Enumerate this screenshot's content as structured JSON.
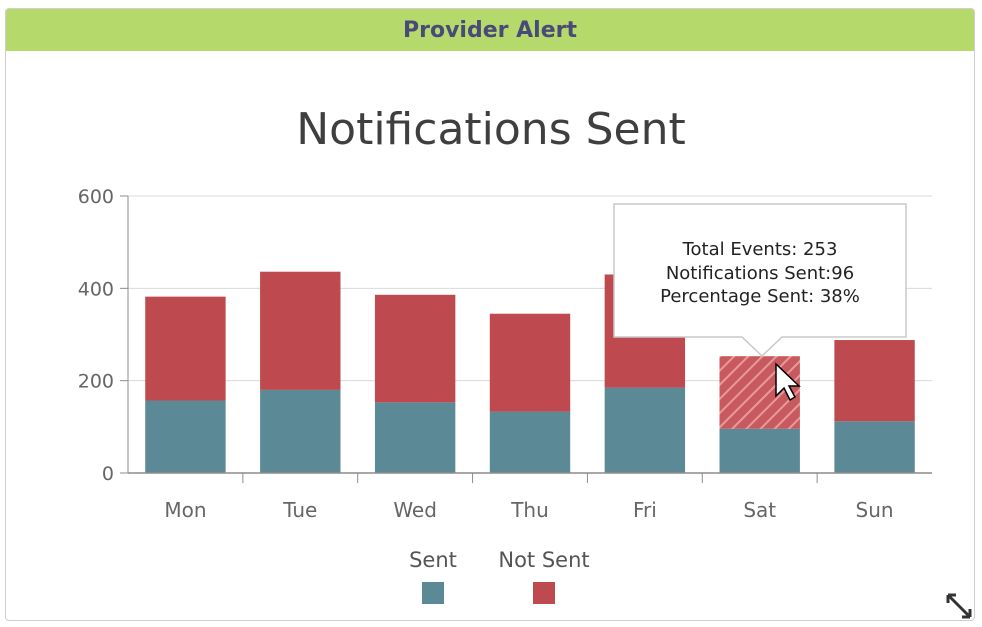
{
  "panel": {
    "header_title": "Provider Alert"
  },
  "chart_data": {
    "type": "bar",
    "stacked": true,
    "title": "Notifications Sent",
    "categories": [
      "Mon",
      "Tue",
      "Wed",
      "Thu",
      "Fri",
      "Sat",
      "Sun"
    ],
    "series": [
      {
        "name": "Sent",
        "color": "#5b8a96",
        "values": [
          157,
          180,
          153,
          133,
          185,
          96,
          112
        ]
      },
      {
        "name": "Not Sent",
        "color": "#be4a50",
        "values": [
          225,
          256,
          233,
          212,
          245,
          157,
          176
        ]
      }
    ],
    "ylim": [
      0,
      600
    ],
    "yticks": [
      "0",
      "200",
      "400",
      "600"
    ],
    "grid": true,
    "legend_position": "bottom",
    "highlighted_category": "Sat"
  },
  "tooltip": {
    "line1": "Total Events: 253",
    "line2": "Notifications Sent:96",
    "line3": "Percentage Sent: 38%"
  },
  "icons": {
    "resize": "resize-icon",
    "cursor": "mouse-pointer-icon"
  }
}
